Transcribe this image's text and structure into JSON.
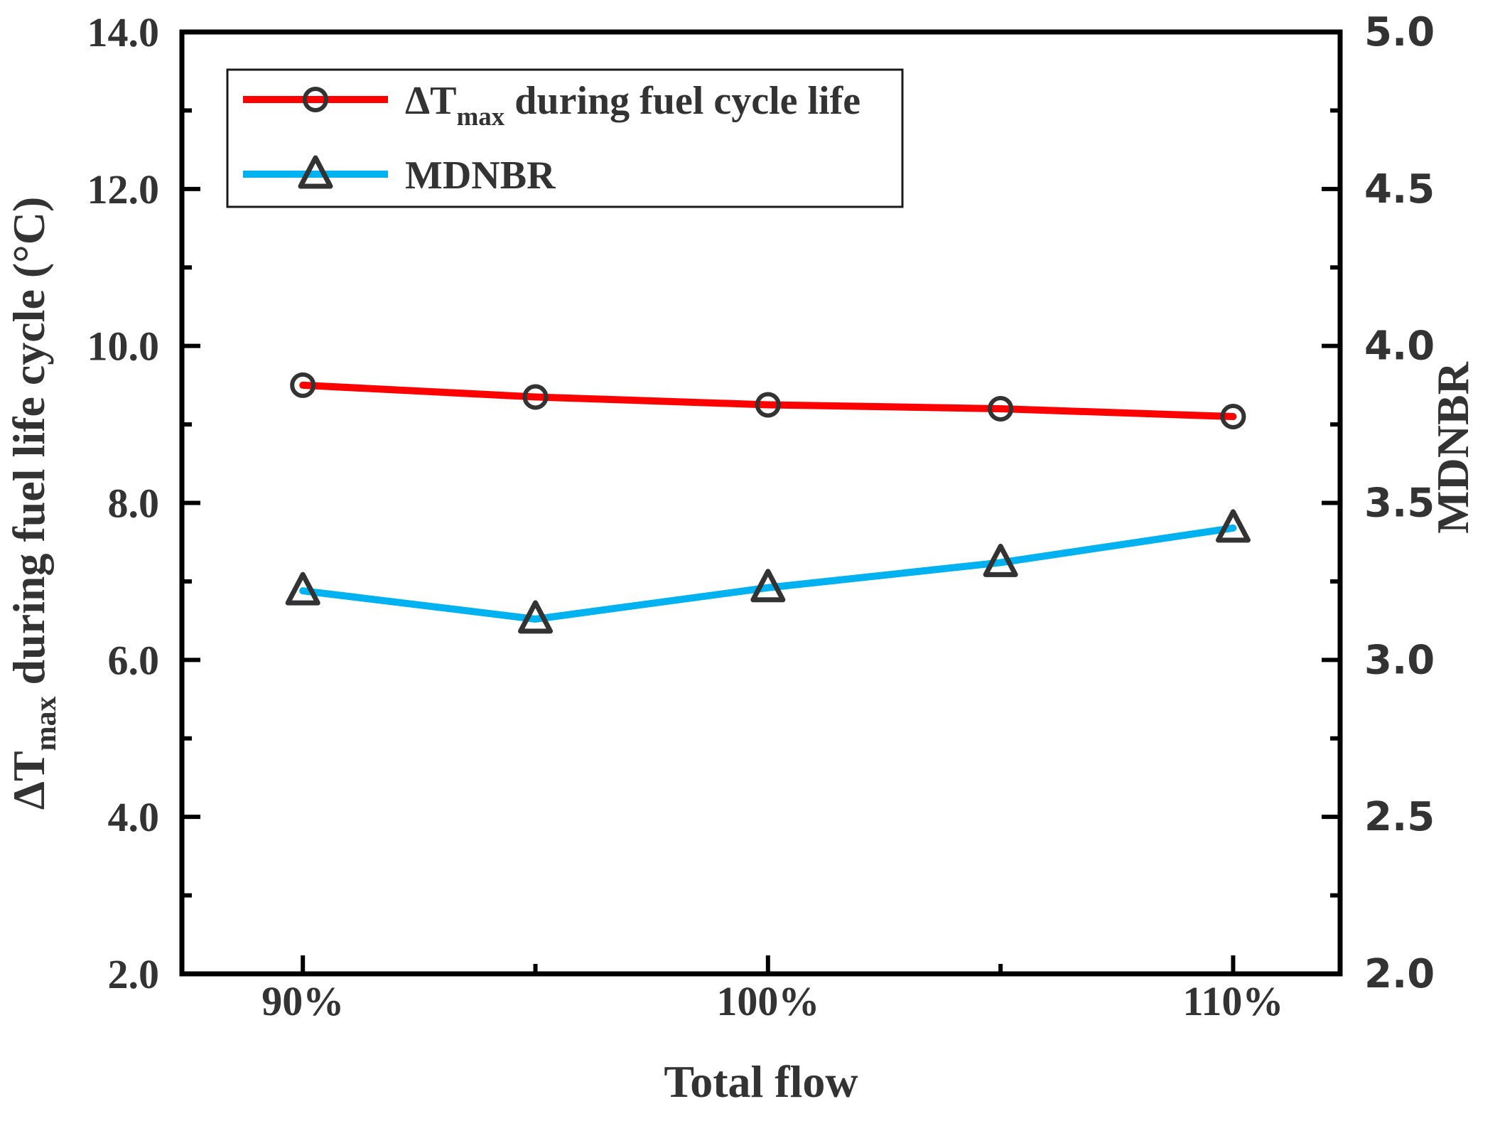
{
  "chart_data": {
    "type": "line",
    "title": "",
    "xlabel": "Total flow",
    "ylabel_left_parts": [
      {
        "t": "ΔT"
      },
      {
        "t": "max",
        "sub": true
      },
      {
        "t": " during fuel life cycle (°C)"
      }
    ],
    "ylabel_right": "MDNBR",
    "x": [
      90,
      95,
      100,
      105,
      110
    ],
    "x_major_ticks": [
      90,
      100,
      110
    ],
    "x_major_tick_labels": [
      "90%",
      "100%",
      "110%"
    ],
    "x_minor_ticks": [
      95,
      105
    ],
    "xlim": [
      87.4,
      112.3
    ],
    "left_axis": {
      "lim": [
        2.0,
        14.0
      ],
      "major_ticks": [
        14,
        12,
        10,
        8,
        6,
        4,
        2
      ],
      "major_tick_labels": [
        "14.0",
        "12.0",
        "10.0",
        "8.0",
        "6.0",
        "4.0",
        "2.0"
      ],
      "minor_ticks": [
        13,
        11,
        9,
        7,
        5,
        3
      ]
    },
    "right_axis": {
      "lim": [
        2.0,
        5.0
      ],
      "major_ticks": [
        5.0,
        4.5,
        4.0,
        3.5,
        3.0,
        2.5,
        2.0
      ],
      "major_tick_labels": [
        "5.0",
        "4.5",
        "4.0",
        "3.5",
        "3.0",
        "2.5",
        "2.0"
      ],
      "minor_ticks": [
        4.75,
        4.25,
        3.75,
        3.25,
        2.75,
        2.25
      ]
    },
    "series": [
      {
        "id": "dtmax",
        "legend_parts": [
          {
            "t": "ΔT"
          },
          {
            "t": "max",
            "sub": true
          },
          {
            "t": " during fuel cycle life"
          }
        ],
        "axis": "left",
        "color": "#fe0000",
        "marker": "circle",
        "marker_edge_color": "#333333",
        "values": [
          9.5,
          9.35,
          9.25,
          9.2,
          9.1
        ]
      },
      {
        "id": "mdnbr",
        "legend_parts": [
          {
            "t": "MDNBR"
          }
        ],
        "axis": "right",
        "color": "#00b3f0",
        "marker": "triangle",
        "marker_edge_color": "#333333",
        "values": [
          3.22,
          3.13,
          3.23,
          3.31,
          3.42
        ]
      }
    ],
    "legend": {
      "position": "top-left",
      "border": true
    },
    "grid": false,
    "frame_color": "#000000",
    "text_color": "#333333"
  }
}
